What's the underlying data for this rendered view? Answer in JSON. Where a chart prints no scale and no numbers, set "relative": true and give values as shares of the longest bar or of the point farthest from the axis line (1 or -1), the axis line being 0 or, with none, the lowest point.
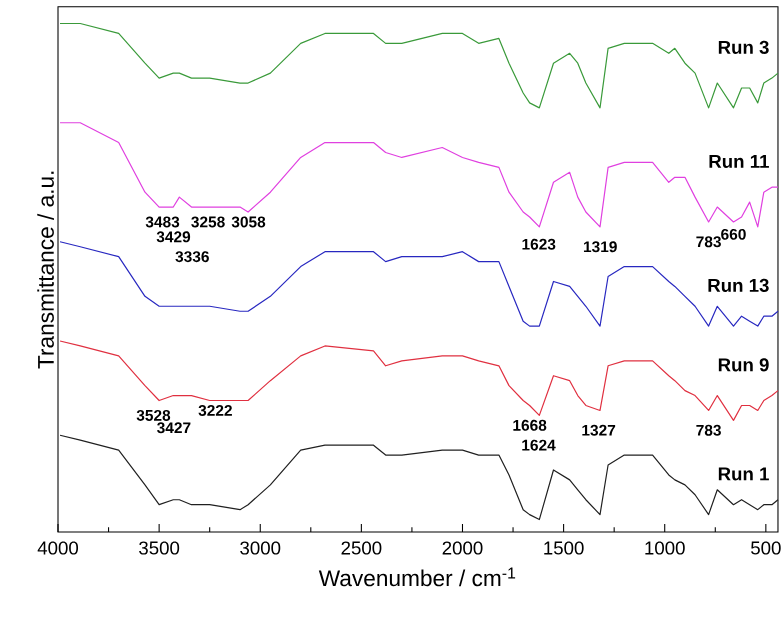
{
  "chart_data": {
    "type": "line",
    "xlabel": "Wavenumber / cm$^{-1}$",
    "ylabel": "Transmittance / a.u.",
    "relative": true,
    "xlim": [
      4000,
      440
    ],
    "xticks": [
      4000,
      3500,
      3000,
      2500,
      2000,
      1500,
      1000,
      500
    ],
    "x": [
      3990,
      3890,
      3700,
      3570,
      3500,
      3430,
      3400,
      3340,
      3250,
      3100,
      3060,
      2950,
      2800,
      2680,
      2440,
      2380,
      2300,
      2100,
      2000,
      1920,
      1820,
      1770,
      1700,
      1668,
      1620,
      1550,
      1470,
      1430,
      1390,
      1320,
      1280,
      1200,
      1060,
      980,
      950,
      900,
      850,
      783,
      740,
      660,
      620,
      580,
      540,
      510,
      470,
      440
    ],
    "series": [
      {
        "name": "Run 3",
        "color": "#3a9a3a",
        "values": [
          1.0,
          1.0,
          0.98,
          0.92,
          0.89,
          0.9,
          0.9,
          0.89,
          0.89,
          0.88,
          0.88,
          0.9,
          0.96,
          0.98,
          0.98,
          0.96,
          0.96,
          0.98,
          0.98,
          0.96,
          0.97,
          0.92,
          0.86,
          0.84,
          0.83,
          0.92,
          0.94,
          0.92,
          0.88,
          0.83,
          0.95,
          0.96,
          0.96,
          0.94,
          0.95,
          0.92,
          0.9,
          0.83,
          0.88,
          0.83,
          0.87,
          0.87,
          0.84,
          0.88,
          0.89,
          0.9
        ]
      },
      {
        "name": "Run 11",
        "color": "#e040e0",
        "values": [
          0.8,
          0.8,
          0.76,
          0.66,
          0.63,
          0.63,
          0.65,
          0.63,
          0.63,
          0.63,
          0.62,
          0.66,
          0.73,
          0.76,
          0.76,
          0.74,
          0.73,
          0.75,
          0.73,
          0.72,
          0.71,
          0.66,
          0.62,
          0.61,
          0.59,
          0.68,
          0.7,
          0.65,
          0.62,
          0.59,
          0.71,
          0.72,
          0.72,
          0.68,
          0.69,
          0.69,
          0.65,
          0.6,
          0.63,
          0.6,
          0.61,
          0.64,
          0.59,
          0.66,
          0.67,
          0.67
        ]
      },
      {
        "name": "Run 13",
        "color": "#2828c0",
        "values": [
          0.56,
          0.55,
          0.53,
          0.45,
          0.43,
          0.43,
          0.43,
          0.43,
          0.43,
          0.42,
          0.42,
          0.45,
          0.51,
          0.54,
          0.54,
          0.52,
          0.53,
          0.53,
          0.54,
          0.52,
          0.52,
          0.47,
          0.4,
          0.39,
          0.39,
          0.48,
          0.47,
          0.45,
          0.43,
          0.39,
          0.49,
          0.51,
          0.51,
          0.48,
          0.47,
          0.45,
          0.43,
          0.39,
          0.43,
          0.39,
          0.41,
          0.4,
          0.39,
          0.41,
          0.41,
          0.42
        ]
      },
      {
        "name": "Run 9",
        "color": "#e03040",
        "values": [
          0.36,
          0.35,
          0.33,
          0.27,
          0.24,
          0.25,
          0.25,
          0.25,
          0.24,
          0.24,
          0.24,
          0.28,
          0.33,
          0.35,
          0.34,
          0.31,
          0.32,
          0.33,
          0.33,
          0.32,
          0.31,
          0.27,
          0.24,
          0.23,
          0.21,
          0.29,
          0.28,
          0.25,
          0.23,
          0.22,
          0.31,
          0.32,
          0.32,
          0.29,
          0.28,
          0.26,
          0.25,
          0.22,
          0.25,
          0.2,
          0.23,
          0.23,
          0.22,
          0.24,
          0.25,
          0.26
        ]
      },
      {
        "name": "Run 1",
        "color": "#202020",
        "values": [
          0.17,
          0.16,
          0.14,
          0.07,
          0.03,
          0.04,
          0.04,
          0.03,
          0.03,
          0.02,
          0.03,
          0.07,
          0.14,
          0.15,
          0.15,
          0.13,
          0.13,
          0.14,
          0.14,
          0.13,
          0.13,
          0.09,
          0.02,
          0.01,
          0.0,
          0.1,
          0.08,
          0.06,
          0.04,
          0.01,
          0.11,
          0.13,
          0.13,
          0.09,
          0.08,
          0.07,
          0.05,
          0.01,
          0.06,
          0.03,
          0.04,
          0.03,
          0.02,
          0.03,
          0.03,
          0.04
        ]
      }
    ],
    "annotations": [
      "3483",
      "3429",
      "3336",
      "3258",
      "3058",
      "1623",
      "1319",
      "783",
      "660",
      "3528",
      "3427",
      "3222",
      "1668",
      "1624",
      "1327",
      "783"
    ]
  }
}
